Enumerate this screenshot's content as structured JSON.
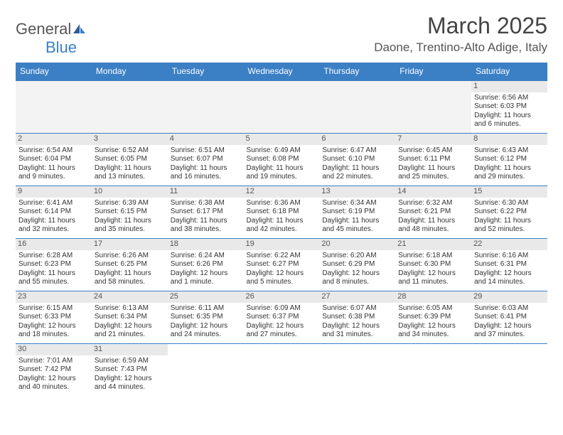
{
  "logo": {
    "text1": "General",
    "text2": "Blue"
  },
  "title": "March 2025",
  "location": "Daone, Trentino-Alto Adige, Italy",
  "colors": {
    "header_bg": "#3b7fc4",
    "header_text": "#ffffff",
    "border": "#3b7fc4",
    "daynum_bg": "#e9e9e9",
    "empty_bg": "#f3f3f3",
    "text": "#333333"
  },
  "weekdays": [
    "Sunday",
    "Monday",
    "Tuesday",
    "Wednesday",
    "Thursday",
    "Friday",
    "Saturday"
  ],
  "weeks": [
    [
      null,
      null,
      null,
      null,
      null,
      null,
      {
        "d": "1",
        "sunrise": "Sunrise: 6:56 AM",
        "sunset": "Sunset: 6:03 PM",
        "daylight": "Daylight: 11 hours and 6 minutes."
      }
    ],
    [
      {
        "d": "2",
        "sunrise": "Sunrise: 6:54 AM",
        "sunset": "Sunset: 6:04 PM",
        "daylight": "Daylight: 11 hours and 9 minutes."
      },
      {
        "d": "3",
        "sunrise": "Sunrise: 6:52 AM",
        "sunset": "Sunset: 6:05 PM",
        "daylight": "Daylight: 11 hours and 13 minutes."
      },
      {
        "d": "4",
        "sunrise": "Sunrise: 6:51 AM",
        "sunset": "Sunset: 6:07 PM",
        "daylight": "Daylight: 11 hours and 16 minutes."
      },
      {
        "d": "5",
        "sunrise": "Sunrise: 6:49 AM",
        "sunset": "Sunset: 6:08 PM",
        "daylight": "Daylight: 11 hours and 19 minutes."
      },
      {
        "d": "6",
        "sunrise": "Sunrise: 6:47 AM",
        "sunset": "Sunset: 6:10 PM",
        "daylight": "Daylight: 11 hours and 22 minutes."
      },
      {
        "d": "7",
        "sunrise": "Sunrise: 6:45 AM",
        "sunset": "Sunset: 6:11 PM",
        "daylight": "Daylight: 11 hours and 25 minutes."
      },
      {
        "d": "8",
        "sunrise": "Sunrise: 6:43 AM",
        "sunset": "Sunset: 6:12 PM",
        "daylight": "Daylight: 11 hours and 29 minutes."
      }
    ],
    [
      {
        "d": "9",
        "sunrise": "Sunrise: 6:41 AM",
        "sunset": "Sunset: 6:14 PM",
        "daylight": "Daylight: 11 hours and 32 minutes."
      },
      {
        "d": "10",
        "sunrise": "Sunrise: 6:39 AM",
        "sunset": "Sunset: 6:15 PM",
        "daylight": "Daylight: 11 hours and 35 minutes."
      },
      {
        "d": "11",
        "sunrise": "Sunrise: 6:38 AM",
        "sunset": "Sunset: 6:17 PM",
        "daylight": "Daylight: 11 hours and 38 minutes."
      },
      {
        "d": "12",
        "sunrise": "Sunrise: 6:36 AM",
        "sunset": "Sunset: 6:18 PM",
        "daylight": "Daylight: 11 hours and 42 minutes."
      },
      {
        "d": "13",
        "sunrise": "Sunrise: 6:34 AM",
        "sunset": "Sunset: 6:19 PM",
        "daylight": "Daylight: 11 hours and 45 minutes."
      },
      {
        "d": "14",
        "sunrise": "Sunrise: 6:32 AM",
        "sunset": "Sunset: 6:21 PM",
        "daylight": "Daylight: 11 hours and 48 minutes."
      },
      {
        "d": "15",
        "sunrise": "Sunrise: 6:30 AM",
        "sunset": "Sunset: 6:22 PM",
        "daylight": "Daylight: 11 hours and 52 minutes."
      }
    ],
    [
      {
        "d": "16",
        "sunrise": "Sunrise: 6:28 AM",
        "sunset": "Sunset: 6:23 PM",
        "daylight": "Daylight: 11 hours and 55 minutes."
      },
      {
        "d": "17",
        "sunrise": "Sunrise: 6:26 AM",
        "sunset": "Sunset: 6:25 PM",
        "daylight": "Daylight: 11 hours and 58 minutes."
      },
      {
        "d": "18",
        "sunrise": "Sunrise: 6:24 AM",
        "sunset": "Sunset: 6:26 PM",
        "daylight": "Daylight: 12 hours and 1 minute."
      },
      {
        "d": "19",
        "sunrise": "Sunrise: 6:22 AM",
        "sunset": "Sunset: 6:27 PM",
        "daylight": "Daylight: 12 hours and 5 minutes."
      },
      {
        "d": "20",
        "sunrise": "Sunrise: 6:20 AM",
        "sunset": "Sunset: 6:29 PM",
        "daylight": "Daylight: 12 hours and 8 minutes."
      },
      {
        "d": "21",
        "sunrise": "Sunrise: 6:18 AM",
        "sunset": "Sunset: 6:30 PM",
        "daylight": "Daylight: 12 hours and 11 minutes."
      },
      {
        "d": "22",
        "sunrise": "Sunrise: 6:16 AM",
        "sunset": "Sunset: 6:31 PM",
        "daylight": "Daylight: 12 hours and 14 minutes."
      }
    ],
    [
      {
        "d": "23",
        "sunrise": "Sunrise: 6:15 AM",
        "sunset": "Sunset: 6:33 PM",
        "daylight": "Daylight: 12 hours and 18 minutes."
      },
      {
        "d": "24",
        "sunrise": "Sunrise: 6:13 AM",
        "sunset": "Sunset: 6:34 PM",
        "daylight": "Daylight: 12 hours and 21 minutes."
      },
      {
        "d": "25",
        "sunrise": "Sunrise: 6:11 AM",
        "sunset": "Sunset: 6:35 PM",
        "daylight": "Daylight: 12 hours and 24 minutes."
      },
      {
        "d": "26",
        "sunrise": "Sunrise: 6:09 AM",
        "sunset": "Sunset: 6:37 PM",
        "daylight": "Daylight: 12 hours and 27 minutes."
      },
      {
        "d": "27",
        "sunrise": "Sunrise: 6:07 AM",
        "sunset": "Sunset: 6:38 PM",
        "daylight": "Daylight: 12 hours and 31 minutes."
      },
      {
        "d": "28",
        "sunrise": "Sunrise: 6:05 AM",
        "sunset": "Sunset: 6:39 PM",
        "daylight": "Daylight: 12 hours and 34 minutes."
      },
      {
        "d": "29",
        "sunrise": "Sunrise: 6:03 AM",
        "sunset": "Sunset: 6:41 PM",
        "daylight": "Daylight: 12 hours and 37 minutes."
      }
    ],
    [
      {
        "d": "30",
        "sunrise": "Sunrise: 7:01 AM",
        "sunset": "Sunset: 7:42 PM",
        "daylight": "Daylight: 12 hours and 40 minutes."
      },
      {
        "d": "31",
        "sunrise": "Sunrise: 6:59 AM",
        "sunset": "Sunset: 7:43 PM",
        "daylight": "Daylight: 12 hours and 44 minutes."
      },
      null,
      null,
      null,
      null,
      null
    ]
  ]
}
